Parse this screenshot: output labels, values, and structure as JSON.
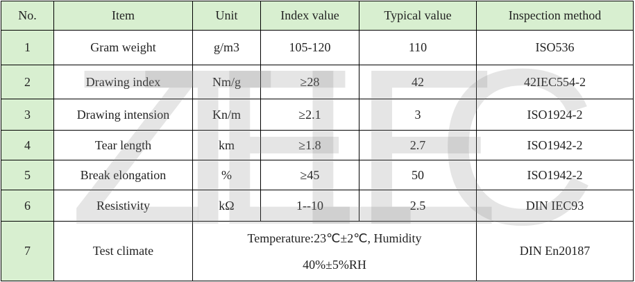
{
  "table": {
    "header": [
      "No.",
      "Item",
      "Unit",
      "Index value",
      "Typical value",
      "Inspection method"
    ],
    "rows": [
      [
        "1",
        "Gram weight",
        "g/m3",
        "105-120",
        "110",
        "ISO536"
      ],
      [
        "2",
        "Drawing index",
        "Nm/g",
        "≥28",
        "42",
        "42IEC554-2"
      ],
      [
        "3",
        "Drawing intension",
        "Kn/m",
        "≥2.1",
        "3",
        "ISO1924-2"
      ],
      [
        "4",
        "Tear length",
        "km",
        "≥1.8",
        "2.7",
        "ISO1942-2"
      ],
      [
        "5",
        "Break elongation",
        "%",
        "≥45",
        "50",
        "ISO1942-2"
      ],
      [
        "6",
        "Resistivity",
        "kΩ",
        "1--10",
        "2.5",
        "DIN IEC93"
      ],
      [
        "7",
        "Test climate",
        [
          "Temperature:23℃±2℃, Humidity",
          "40%±5%RH"
        ],
        "DIN En20187"
      ]
    ]
  },
  "watermark": "ZTELEC"
}
